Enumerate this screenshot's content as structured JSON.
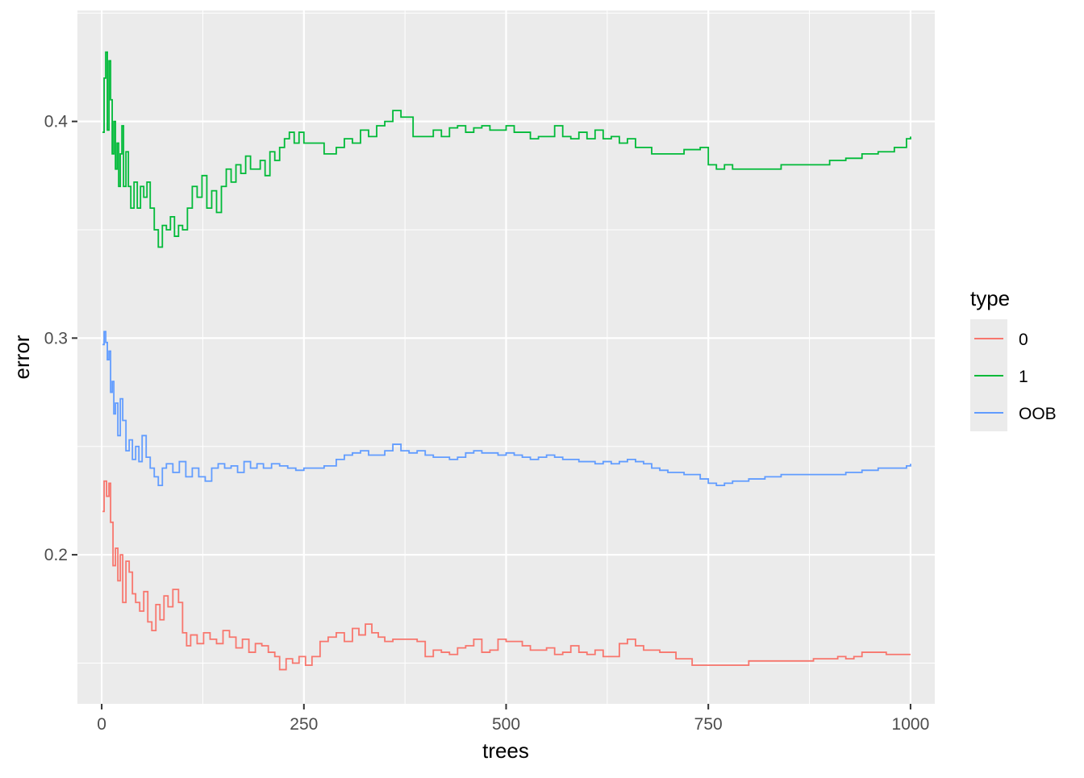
{
  "chart_data": {
    "type": "line",
    "title": "",
    "xlabel": "trees",
    "ylabel": "error",
    "xlim": [
      -30,
      1030
    ],
    "ylim": [
      0.1312,
      0.4512
    ],
    "x_ticks": [
      0,
      250,
      500,
      750,
      1000
    ],
    "x_tick_labels": [
      "0",
      "250",
      "500",
      "750",
      "1000"
    ],
    "y_ticks": [
      0.2,
      0.3,
      0.4
    ],
    "y_tick_labels": [
      "0.2",
      "0.3",
      "0.4"
    ],
    "grid": true,
    "legend": {
      "title": "type",
      "position": "right",
      "entries": [
        "0",
        "1",
        "OOB"
      ]
    },
    "series": [
      {
        "name": "0",
        "color": "#F8766D",
        "x": [
          1,
          3,
          6,
          9,
          11,
          14,
          17,
          20,
          23,
          26,
          30,
          34,
          38,
          42,
          47,
          52,
          57,
          62,
          67,
          72,
          77,
          82,
          88,
          95,
          100,
          105,
          110,
          118,
          126,
          134,
          142,
          150,
          158,
          166,
          174,
          182,
          190,
          198,
          206,
          214,
          220,
          228,
          236,
          244,
          252,
          260,
          270,
          280,
          290,
          300,
          310,
          318,
          326,
          334,
          342,
          350,
          360,
          375,
          390,
          400,
          410,
          420,
          430,
          440,
          450,
          460,
          470,
          480,
          490,
          500,
          510,
          520,
          530,
          540,
          550,
          560,
          570,
          580,
          590,
          600,
          610,
          620,
          630,
          640,
          650,
          660,
          670,
          680,
          690,
          700,
          710,
          720,
          730,
          750,
          770,
          790,
          800,
          820,
          850,
          880,
          900,
          910,
          920,
          930,
          940,
          950,
          960,
          970,
          980,
          990,
          1000
        ],
        "values": [
          0.22,
          0.234,
          0.227,
          0.233,
          0.215,
          0.195,
          0.203,
          0.188,
          0.2,
          0.178,
          0.197,
          0.192,
          0.182,
          0.178,
          0.174,
          0.183,
          0.169,
          0.165,
          0.177,
          0.17,
          0.181,
          0.176,
          0.184,
          0.178,
          0.164,
          0.158,
          0.163,
          0.159,
          0.164,
          0.161,
          0.159,
          0.165,
          0.162,
          0.157,
          0.161,
          0.155,
          0.159,
          0.158,
          0.155,
          0.153,
          0.147,
          0.152,
          0.15,
          0.153,
          0.149,
          0.153,
          0.16,
          0.162,
          0.164,
          0.16,
          0.166,
          0.163,
          0.168,
          0.164,
          0.162,
          0.16,
          0.161,
          0.161,
          0.16,
          0.153,
          0.156,
          0.155,
          0.154,
          0.157,
          0.158,
          0.161,
          0.155,
          0.156,
          0.161,
          0.16,
          0.16,
          0.158,
          0.156,
          0.156,
          0.157,
          0.154,
          0.155,
          0.158,
          0.155,
          0.154,
          0.156,
          0.153,
          0.153,
          0.159,
          0.161,
          0.158,
          0.156,
          0.156,
          0.155,
          0.155,
          0.152,
          0.152,
          0.149,
          0.149,
          0.149,
          0.149,
          0.151,
          0.151,
          0.151,
          0.152,
          0.152,
          0.153,
          0.152,
          0.153,
          0.155,
          0.155,
          0.155,
          0.154,
          0.154,
          0.154,
          0.154
        ]
      },
      {
        "name": "1",
        "color": "#00BA38",
        "x": [
          1,
          3,
          5,
          7,
          9,
          11,
          13,
          15,
          17,
          19,
          21,
          23,
          25,
          27,
          30,
          33,
          36,
          40,
          44,
          48,
          52,
          56,
          60,
          65,
          70,
          75,
          80,
          85,
          90,
          95,
          100,
          106,
          112,
          118,
          124,
          130,
          136,
          142,
          148,
          154,
          160,
          166,
          172,
          178,
          184,
          190,
          196,
          202,
          208,
          214,
          220,
          226,
          232,
          238,
          244,
          250,
          260,
          275,
          290,
          300,
          310,
          320,
          330,
          340,
          350,
          360,
          370,
          385,
          400,
          410,
          420,
          430,
          440,
          450,
          460,
          470,
          480,
          490,
          500,
          510,
          520,
          530,
          540,
          550,
          560,
          570,
          580,
          590,
          600,
          610,
          620,
          630,
          640,
          650,
          660,
          680,
          700,
          720,
          740,
          750,
          760,
          770,
          780,
          790,
          800,
          820,
          840,
          860,
          880,
          900,
          920,
          940,
          960,
          980,
          995,
          1000
        ],
        "values": [
          0.395,
          0.42,
          0.432,
          0.396,
          0.428,
          0.41,
          0.385,
          0.4,
          0.378,
          0.39,
          0.37,
          0.385,
          0.398,
          0.37,
          0.386,
          0.37,
          0.36,
          0.372,
          0.36,
          0.37,
          0.365,
          0.372,
          0.36,
          0.35,
          0.342,
          0.352,
          0.35,
          0.356,
          0.347,
          0.352,
          0.35,
          0.36,
          0.37,
          0.365,
          0.375,
          0.36,
          0.368,
          0.358,
          0.37,
          0.378,
          0.372,
          0.38,
          0.376,
          0.384,
          0.378,
          0.378,
          0.382,
          0.375,
          0.386,
          0.382,
          0.388,
          0.392,
          0.395,
          0.39,
          0.395,
          0.39,
          0.39,
          0.385,
          0.388,
          0.392,
          0.39,
          0.396,
          0.393,
          0.398,
          0.4,
          0.405,
          0.402,
          0.393,
          0.393,
          0.396,
          0.393,
          0.397,
          0.398,
          0.395,
          0.397,
          0.398,
          0.396,
          0.396,
          0.398,
          0.395,
          0.395,
          0.392,
          0.393,
          0.393,
          0.398,
          0.393,
          0.392,
          0.395,
          0.392,
          0.396,
          0.392,
          0.393,
          0.39,
          0.392,
          0.388,
          0.385,
          0.385,
          0.387,
          0.388,
          0.38,
          0.378,
          0.38,
          0.378,
          0.378,
          0.378,
          0.378,
          0.38,
          0.38,
          0.38,
          0.382,
          0.383,
          0.385,
          0.386,
          0.388,
          0.392,
          0.393
        ]
      },
      {
        "name": "OOB",
        "color": "#619CFF",
        "x": [
          1,
          3,
          5,
          7,
          9,
          11,
          13,
          15,
          17,
          20,
          23,
          26,
          30,
          34,
          38,
          42,
          46,
          50,
          55,
          60,
          65,
          70,
          75,
          80,
          88,
          96,
          104,
          112,
          120,
          128,
          136,
          144,
          152,
          160,
          168,
          176,
          184,
          192,
          200,
          210,
          220,
          230,
          240,
          250,
          262,
          275,
          290,
          300,
          310,
          320,
          330,
          340,
          350,
          360,
          370,
          380,
          390,
          400,
          410,
          420,
          430,
          440,
          450,
          460,
          470,
          480,
          490,
          500,
          510,
          520,
          530,
          540,
          550,
          560,
          570,
          580,
          590,
          600,
          610,
          620,
          630,
          640,
          650,
          660,
          670,
          680,
          690,
          700,
          710,
          720,
          730,
          740,
          750,
          760,
          770,
          780,
          790,
          800,
          820,
          840,
          860,
          880,
          900,
          920,
          940,
          960,
          980,
          995,
          1000
        ],
        "values": [
          0.297,
          0.303,
          0.298,
          0.29,
          0.294,
          0.275,
          0.28,
          0.265,
          0.27,
          0.255,
          0.272,
          0.262,
          0.248,
          0.253,
          0.244,
          0.25,
          0.243,
          0.255,
          0.245,
          0.24,
          0.236,
          0.232,
          0.24,
          0.242,
          0.238,
          0.243,
          0.236,
          0.24,
          0.236,
          0.234,
          0.24,
          0.242,
          0.24,
          0.241,
          0.238,
          0.243,
          0.24,
          0.242,
          0.24,
          0.242,
          0.241,
          0.24,
          0.239,
          0.24,
          0.24,
          0.241,
          0.244,
          0.246,
          0.247,
          0.248,
          0.246,
          0.246,
          0.248,
          0.251,
          0.248,
          0.247,
          0.248,
          0.246,
          0.245,
          0.245,
          0.244,
          0.245,
          0.247,
          0.248,
          0.247,
          0.247,
          0.246,
          0.247,
          0.246,
          0.245,
          0.244,
          0.245,
          0.246,
          0.245,
          0.244,
          0.244,
          0.243,
          0.243,
          0.242,
          0.243,
          0.242,
          0.243,
          0.244,
          0.243,
          0.242,
          0.24,
          0.239,
          0.238,
          0.238,
          0.237,
          0.237,
          0.235,
          0.233,
          0.232,
          0.233,
          0.234,
          0.234,
          0.235,
          0.236,
          0.237,
          0.237,
          0.237,
          0.237,
          0.238,
          0.239,
          0.24,
          0.24,
          0.241,
          0.242
        ]
      }
    ]
  }
}
